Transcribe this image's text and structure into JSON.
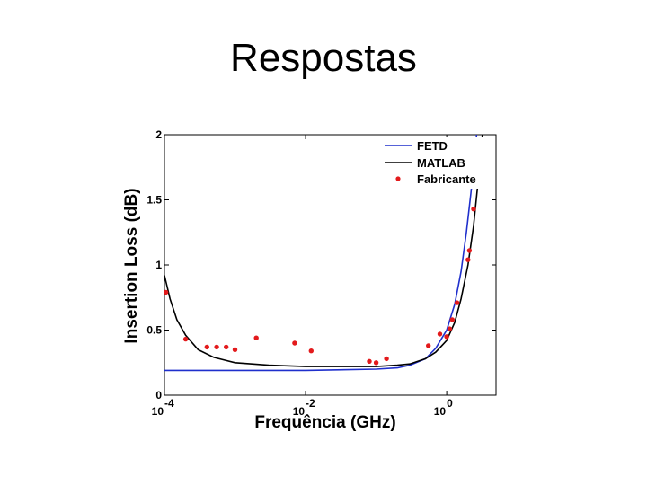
{
  "slide": {
    "title": "Respostas"
  },
  "chart_data": {
    "type": "line",
    "xlabel": "Frequência (GHz)",
    "ylabel": "Insertion Loss (dB)",
    "xscale": "log",
    "xlim": [
      0.0001,
      5
    ],
    "ylim": [
      0,
      2
    ],
    "grid": false,
    "legend_position": "top-right",
    "x_ticks": [
      {
        "value": 0.0001,
        "base": "10",
        "exp": "-4"
      },
      {
        "value": 0.01,
        "base": "10",
        "exp": "-2"
      },
      {
        "value": 1,
        "base": "10",
        "exp": "0"
      }
    ],
    "y_ticks": [
      {
        "value": 0,
        "label": "0"
      },
      {
        "value": 0.5,
        "label": "0.5"
      },
      {
        "value": 1,
        "label": "1"
      },
      {
        "value": 1.5,
        "label": "1.5"
      },
      {
        "value": 2,
        "label": "2"
      }
    ],
    "series": [
      {
        "name": "FETD",
        "kind": "line",
        "color": "#1f2fcc",
        "points": [
          [
            0.0001,
            0.19
          ],
          [
            0.01,
            0.19
          ],
          [
            0.1,
            0.2
          ],
          [
            0.2,
            0.21
          ],
          [
            0.3,
            0.23
          ],
          [
            0.5,
            0.28
          ],
          [
            0.7,
            0.36
          ],
          [
            1,
            0.5
          ],
          [
            1.3,
            0.7
          ],
          [
            1.6,
            0.95
          ],
          [
            1.9,
            1.25
          ],
          [
            2.2,
            1.55
          ],
          [
            2.5,
            1.85
          ],
          [
            2.7,
            2.05
          ],
          [
            3,
            2.4
          ]
        ]
      },
      {
        "name": "MATLAB",
        "kind": "line",
        "color": "#000000",
        "points": [
          [
            0.0001,
            0.92
          ],
          [
            0.00012,
            0.74
          ],
          [
            0.00015,
            0.58
          ],
          [
            0.0002,
            0.46
          ],
          [
            0.0003,
            0.35
          ],
          [
            0.0005,
            0.29
          ],
          [
            0.001,
            0.25
          ],
          [
            0.003,
            0.23
          ],
          [
            0.01,
            0.22
          ],
          [
            0.05,
            0.22
          ],
          [
            0.1,
            0.22
          ],
          [
            0.2,
            0.23
          ],
          [
            0.3,
            0.24
          ],
          [
            0.5,
            0.28
          ],
          [
            0.7,
            0.33
          ],
          [
            1,
            0.42
          ],
          [
            1.3,
            0.56
          ],
          [
            1.6,
            0.74
          ],
          [
            2,
            1.0
          ],
          [
            2.4,
            1.3
          ],
          [
            2.8,
            1.65
          ],
          [
            3.2,
            2.0
          ],
          [
            3.5,
            2.3
          ]
        ]
      },
      {
        "name": "Fabricante",
        "kind": "scatter",
        "color": "#e31a1c",
        "points": [
          [
            0.000105,
            0.79
          ],
          [
            0.0002,
            0.43
          ],
          [
            0.0004,
            0.37
          ],
          [
            0.00055,
            0.37
          ],
          [
            0.00075,
            0.37
          ],
          [
            0.001,
            0.35
          ],
          [
            0.002,
            0.44
          ],
          [
            0.007,
            0.4
          ],
          [
            0.012,
            0.34
          ],
          [
            0.08,
            0.26
          ],
          [
            0.1,
            0.25
          ],
          [
            0.14,
            0.28
          ],
          [
            0.55,
            0.38
          ],
          [
            0.8,
            0.47
          ],
          [
            1.0,
            0.45
          ],
          [
            1.1,
            0.51
          ],
          [
            1.2,
            0.58
          ],
          [
            1.4,
            0.71
          ],
          [
            2.0,
            1.04
          ],
          [
            2.1,
            1.11
          ],
          [
            2.4,
            1.43
          ]
        ]
      }
    ]
  }
}
